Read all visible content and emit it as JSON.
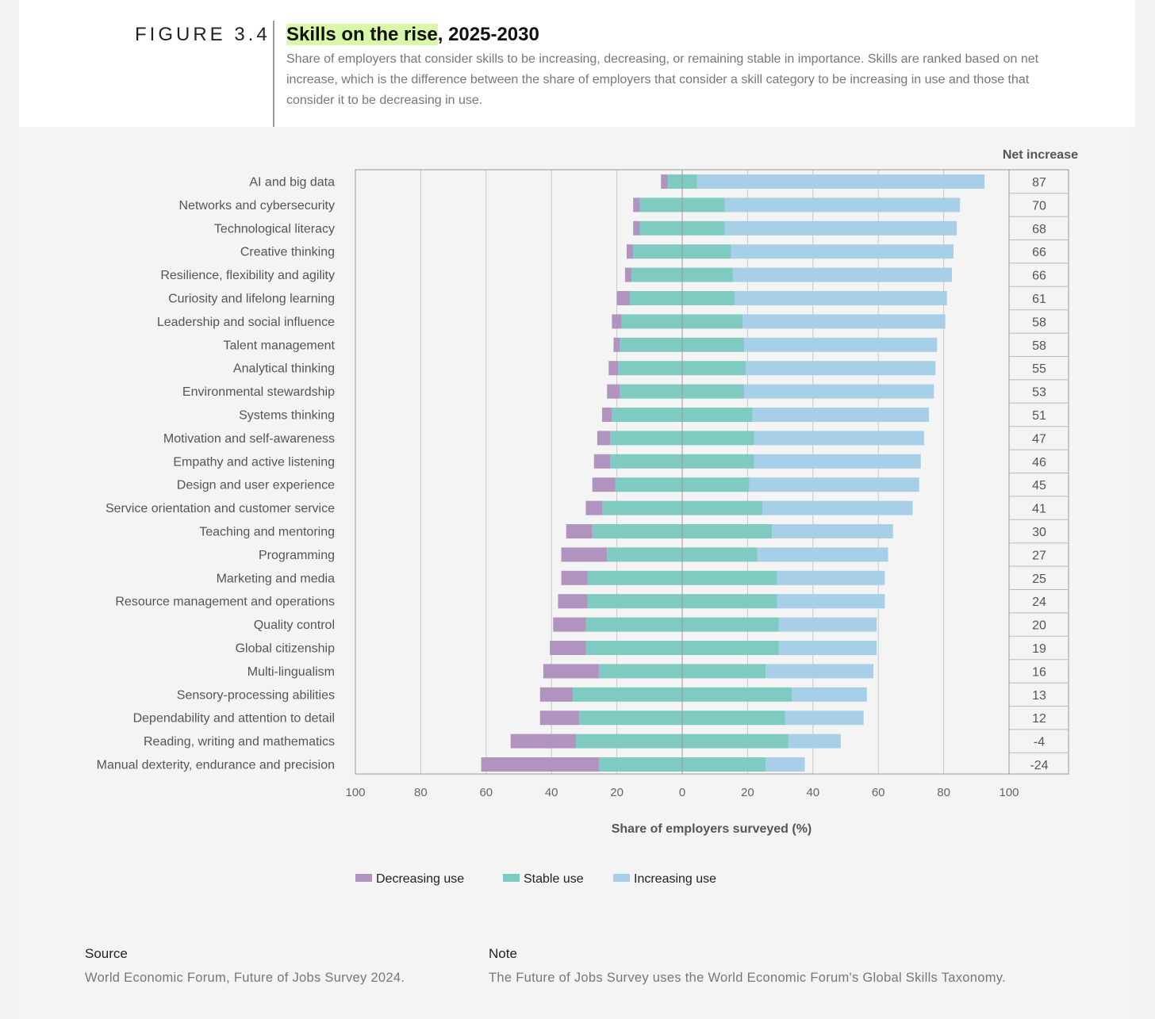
{
  "figure": {
    "label": "FIGURE 3.4",
    "title_highlight": "Skills on the rise",
    "title_rest": ", 2025-2030",
    "subtitle": "Share of employers that consider skills to be increasing, decreasing, or remaining stable in importance. Skills are ranked based on net increase, which is the difference between the share of employers that consider a skill category to be increasing in use and those that consider it to be decreasing in use."
  },
  "chart_data": {
    "type": "bar",
    "orientation": "horizontal-diverging",
    "net_header": "Net increase",
    "xlabel": "Share of employers surveyed (%)",
    "xlim": [
      -100,
      100
    ],
    "x_ticks": [
      "100",
      "80",
      "60",
      "40",
      "20",
      "0",
      "20",
      "40",
      "60",
      "80",
      "100"
    ],
    "categories": [
      "AI and big data",
      "Networks and cybersecurity",
      "Technological literacy",
      "Creative thinking",
      "Resilience, flexibility and agility",
      "Curiosity and lifelong learning",
      "Leadership and social influence",
      "Talent management",
      "Analytical thinking",
      "Environmental stewardship",
      "Systems thinking",
      "Motivation and self-awareness",
      "Empathy and active listening",
      "Design and user experience",
      "Service orientation and customer service",
      "Teaching and mentoring",
      "Programming",
      "Marketing and media",
      "Resource management and operations",
      "Quality control",
      "Global citizenship",
      "Multi-lingualism",
      "Sensory-processing abilities",
      "Dependability and attention to detail",
      "Reading, writing and mathematics",
      "Manual dexterity, endurance and precision"
    ],
    "series": [
      {
        "name": "Decreasing use",
        "color": "#b193c0",
        "values": [
          2,
          2,
          2,
          2,
          2,
          4,
          3,
          2,
          3,
          4,
          3,
          4,
          5,
          7,
          5,
          8,
          14,
          8,
          9,
          10,
          11,
          17,
          10,
          12,
          20,
          36
        ]
      },
      {
        "name": "Stable use",
        "color": "#7fcac1",
        "values": [
          9,
          26,
          26,
          30,
          31,
          32,
          37,
          38,
          39,
          38,
          43,
          44,
          44,
          41,
          49,
          55,
          46,
          58,
          58,
          59,
          59,
          51,
          67,
          63,
          65,
          51
        ]
      },
      {
        "name": "Increasing use",
        "color": "#a8cfe8",
        "values": [
          88,
          72,
          71,
          68,
          67,
          65,
          62,
          59,
          58,
          58,
          54,
          52,
          51,
          52,
          46,
          37,
          40,
          33,
          33,
          30,
          30,
          33,
          23,
          24,
          16,
          12
        ]
      }
    ],
    "net_increase": [
      "87",
      "70",
      "68",
      "66",
      "66",
      "61",
      "58",
      "58",
      "55",
      "53",
      "51",
      "47",
      "46",
      "45",
      "41",
      "30",
      "27",
      "25",
      "24",
      "20",
      "19",
      "16",
      "13",
      "12",
      "-4",
      "-24"
    ],
    "grid": true,
    "legend": "bottom"
  },
  "footer": {
    "source_label": "Source",
    "source_text": "World Economic Forum, Future of Jobs Survey 2024.",
    "note_label": "Note",
    "note_text": "The Future of Jobs Survey uses the World Economic Forum's Global Skills Taxonomy."
  }
}
